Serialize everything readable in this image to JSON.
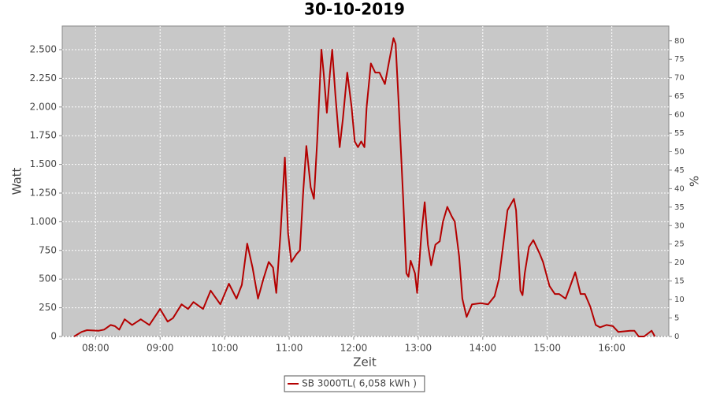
{
  "chart_data": {
    "type": "line",
    "title": "30-10-2019",
    "x_label": "Zeit",
    "y_label": "Watt",
    "y2_label": "%",
    "x": [
      460,
      467,
      472,
      483,
      488,
      494,
      498,
      502,
      507,
      514,
      522,
      530,
      540,
      547,
      552,
      560,
      566,
      571,
      580,
      587,
      596,
      604,
      611,
      616,
      621,
      626,
      631,
      636,
      641,
      645,
      648,
      652,
      656,
      659,
      662,
      667,
      670,
      673,
      676,
      680,
      683,
      686,
      690,
      692,
      695,
      698,
      700,
      703,
      707,
      710,
      714,
      718,
      721,
      724,
      727,
      730,
      732,
      736,
      740,
      744,
      749,
      753,
      757,
      759,
      762,
      766,
      769,
      771,
      773,
      777,
      779,
      783,
      786,
      789,
      792,
      796,
      800,
      803,
      807,
      811,
      814,
      818,
      821,
      825,
      830,
      838,
      845,
      851,
      855,
      859,
      863,
      869,
      871,
      875,
      877,
      879,
      883,
      887,
      893,
      896,
      902,
      907,
      911,
      917,
      921,
      926,
      931,
      935,
      940,
      945,
      949,
      955,
      961,
      966,
      977,
      981,
      985,
      990,
      997,
      1000
    ],
    "series": [
      {
        "name": "SB 3000TL( 6,058 kWh )",
        "color": "#b40000",
        "values": [
          0,
          40,
          55,
          50,
          60,
          100,
          90,
          60,
          150,
          100,
          150,
          100,
          240,
          130,
          160,
          280,
          240,
          300,
          240,
          400,
          280,
          460,
          330,
          450,
          810,
          600,
          330,
          500,
          650,
          600,
          380,
          900,
          1560,
          900,
          650,
          720,
          750,
          1250,
          1660,
          1300,
          1200,
          1700,
          2500,
          2300,
          1950,
          2300,
          2500,
          2100,
          1650,
          1900,
          2300,
          2000,
          1700,
          1650,
          1700,
          1650,
          2000,
          2380,
          2300,
          2300,
          2200,
          2400,
          2600,
          2550,
          2000,
          1200,
          550,
          520,
          660,
          550,
          380,
          900,
          1170,
          800,
          620,
          800,
          830,
          1000,
          1130,
          1050,
          1000,
          700,
          330,
          170,
          280,
          290,
          280,
          350,
          500,
          800,
          1100,
          1200,
          1100,
          400,
          360,
          550,
          780,
          840,
          720,
          650,
          440,
          370,
          370,
          330,
          430,
          560,
          370,
          370,
          260,
          100,
          80,
          100,
          90,
          40,
          50,
          50,
          0,
          0,
          50,
          0
        ]
      }
    ],
    "xlim": [
      449,
      1013
    ],
    "xticks": [
      {
        "value": 480,
        "label": "08:00"
      },
      {
        "value": 540,
        "label": "09:00"
      },
      {
        "value": 600,
        "label": "10:00"
      },
      {
        "value": 660,
        "label": "11:00"
      },
      {
        "value": 720,
        "label": "12:00"
      },
      {
        "value": 780,
        "label": "13:00"
      },
      {
        "value": 840,
        "label": "14:00"
      },
      {
        "value": 900,
        "label": "15:00"
      },
      {
        "value": 960,
        "label": "16:00"
      }
    ],
    "ylim": [
      0,
      2706
    ],
    "yticks": [
      0,
      250,
      500,
      750,
      {
        "value": 1000,
        "label": "1.000"
      },
      {
        "value": 1250,
        "label": "1.250"
      },
      {
        "value": 1500,
        "label": "1.500"
      },
      {
        "value": 1750,
        "label": "1.750"
      },
      {
        "value": 2000,
        "label": "2.000"
      },
      {
        "value": 2250,
        "label": "2.250"
      },
      {
        "value": 2500,
        "label": "2.500"
      }
    ],
    "y2lim": [
      0,
      84
    ],
    "y2ticks": [
      0,
      5,
      10,
      15,
      20,
      25,
      30,
      35,
      40,
      45,
      50,
      55,
      60,
      65,
      70,
      75,
      80
    ],
    "grid": true,
    "background": "#c8c8c8",
    "legend": "bottom"
  }
}
